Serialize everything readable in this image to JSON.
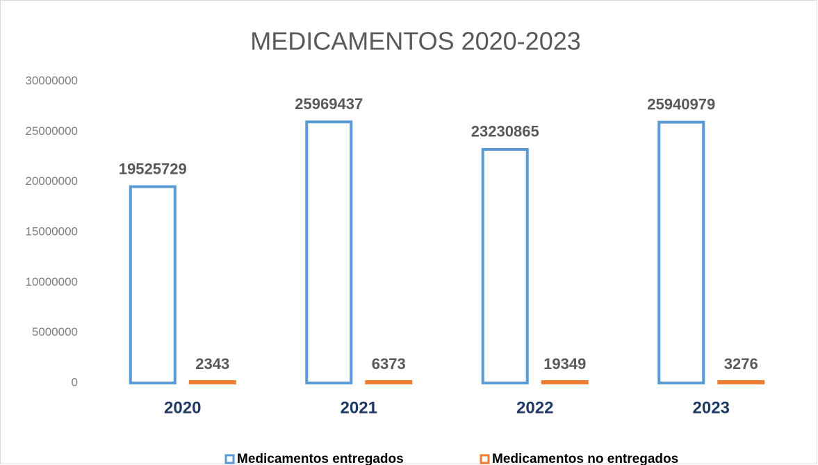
{
  "chart_data": {
    "type": "bar",
    "title": "MEDICAMENTOS 2020-2023",
    "categories": [
      "2020",
      "2021",
      "2022",
      "2023"
    ],
    "series": [
      {
        "name": "Medicamentos entregados",
        "color": "#5b9bd5",
        "values": [
          19525729,
          25969437,
          23230865,
          25940979
        ]
      },
      {
        "name": "Medicamentos no entregados",
        "color": "#ed7d31",
        "values": [
          2343,
          6373,
          19349,
          3276
        ]
      }
    ],
    "ylim": [
      0,
      30000000
    ],
    "yticks": [
      0,
      5000000,
      10000000,
      15000000,
      20000000,
      25000000,
      30000000
    ],
    "grid": false,
    "legend": "bottom"
  }
}
